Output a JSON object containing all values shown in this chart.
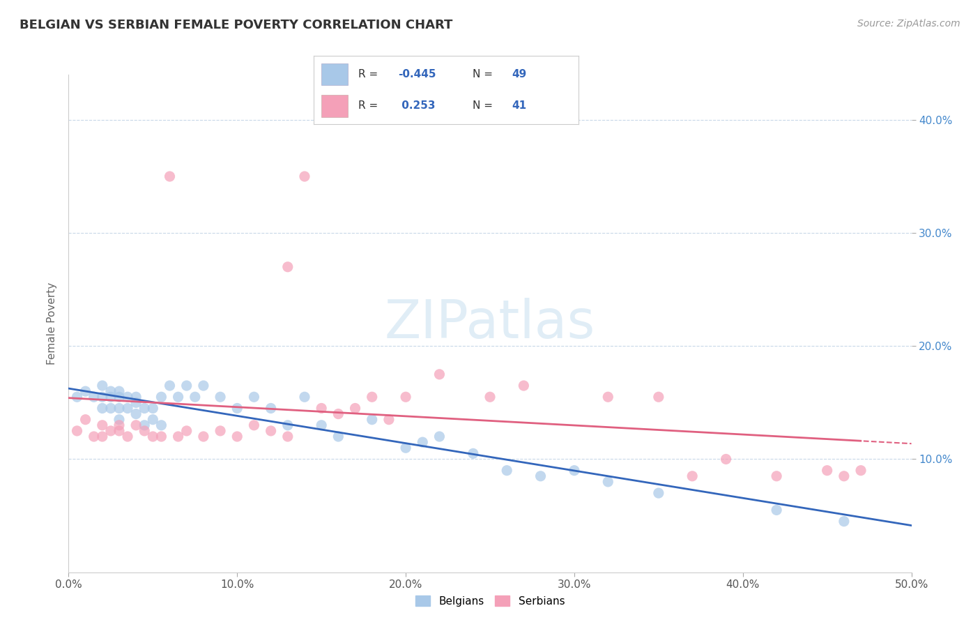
{
  "title": "BELGIAN VS SERBIAN FEMALE POVERTY CORRELATION CHART",
  "source_text": "Source: ZipAtlas.com",
  "ylabel": "Female Poverty",
  "xlim": [
    0.0,
    0.5
  ],
  "ylim": [
    0.0,
    0.44
  ],
  "xtick_labels": [
    "0.0%",
    "10.0%",
    "20.0%",
    "30.0%",
    "40.0%",
    "50.0%"
  ],
  "xtick_vals": [
    0.0,
    0.1,
    0.2,
    0.3,
    0.4,
    0.5
  ],
  "ytick_labels": [
    "10.0%",
    "20.0%",
    "30.0%",
    "40.0%"
  ],
  "ytick_vals": [
    0.1,
    0.2,
    0.3,
    0.4
  ],
  "belgian_color": "#a8c8e8",
  "serbian_color": "#f4a0b8",
  "belgian_line_color": "#3366bb",
  "serbian_line_color": "#e06080",
  "legend_R_belgian": "-0.445",
  "legend_N_belgian": "49",
  "legend_R_serbian": "0.253",
  "legend_N_serbian": "41",
  "belgian_x": [
    0.005,
    0.01,
    0.015,
    0.02,
    0.02,
    0.02,
    0.025,
    0.025,
    0.025,
    0.03,
    0.03,
    0.03,
    0.03,
    0.035,
    0.035,
    0.04,
    0.04,
    0.04,
    0.045,
    0.045,
    0.05,
    0.05,
    0.055,
    0.055,
    0.06,
    0.065,
    0.07,
    0.075,
    0.08,
    0.09,
    0.1,
    0.11,
    0.12,
    0.13,
    0.14,
    0.15,
    0.16,
    0.18,
    0.2,
    0.21,
    0.22,
    0.24,
    0.26,
    0.28,
    0.3,
    0.32,
    0.35,
    0.42,
    0.46
  ],
  "belgian_y": [
    0.155,
    0.16,
    0.155,
    0.165,
    0.155,
    0.145,
    0.155,
    0.145,
    0.16,
    0.135,
    0.145,
    0.155,
    0.16,
    0.145,
    0.155,
    0.14,
    0.15,
    0.155,
    0.13,
    0.145,
    0.135,
    0.145,
    0.13,
    0.155,
    0.165,
    0.155,
    0.165,
    0.155,
    0.165,
    0.155,
    0.145,
    0.155,
    0.145,
    0.13,
    0.155,
    0.13,
    0.12,
    0.135,
    0.11,
    0.115,
    0.12,
    0.105,
    0.09,
    0.085,
    0.09,
    0.08,
    0.07,
    0.055,
    0.045
  ],
  "serbian_x": [
    0.005,
    0.01,
    0.015,
    0.02,
    0.02,
    0.025,
    0.03,
    0.03,
    0.035,
    0.04,
    0.045,
    0.05,
    0.055,
    0.06,
    0.065,
    0.07,
    0.08,
    0.09,
    0.1,
    0.11,
    0.12,
    0.13,
    0.15,
    0.16,
    0.18,
    0.2,
    0.22,
    0.13,
    0.14,
    0.17,
    0.19,
    0.25,
    0.27,
    0.32,
    0.35,
    0.37,
    0.39,
    0.42,
    0.45,
    0.46,
    0.47
  ],
  "serbian_y": [
    0.125,
    0.135,
    0.12,
    0.13,
    0.12,
    0.125,
    0.125,
    0.13,
    0.12,
    0.13,
    0.125,
    0.12,
    0.12,
    0.35,
    0.12,
    0.125,
    0.12,
    0.125,
    0.12,
    0.13,
    0.125,
    0.12,
    0.145,
    0.14,
    0.155,
    0.155,
    0.175,
    0.27,
    0.35,
    0.145,
    0.135,
    0.155,
    0.165,
    0.155,
    0.155,
    0.085,
    0.1,
    0.085,
    0.09,
    0.085,
    0.09
  ]
}
